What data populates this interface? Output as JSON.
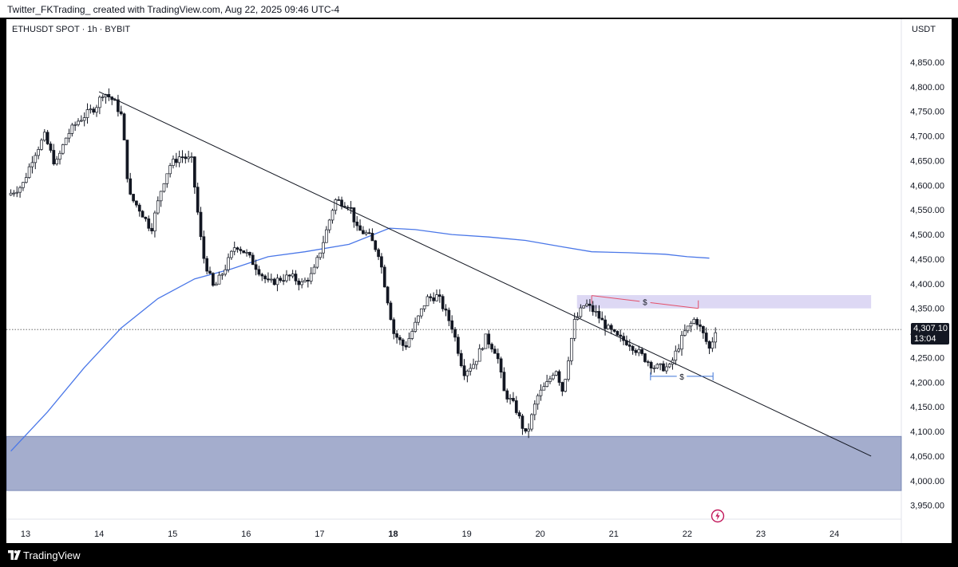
{
  "header": {
    "text": "Twitter_FKTrading_ created with TradingView.com, Aug 22, 2025 09:46 UTC-4"
  },
  "legend": {
    "symbol": "ETHUSDT SPOT · 1h · BYBIT"
  },
  "axis": {
    "currency": "USDT"
  },
  "last_price": {
    "value": "4,307.10",
    "countdown": "13:04"
  },
  "footer": {
    "brand": "TradingView"
  },
  "colors": {
    "up": "#ffffff",
    "down": "#131722",
    "wick": "#131722",
    "ma": "#4a77e8",
    "demand_zone": "#a4adcd",
    "supply_zone": "#ddd8f4",
    "red_level": "#e3506a",
    "blue_level": "#3d73d6"
  },
  "icons": {
    "logo": "tradingview-logo-icon",
    "flash": "lightning-icon"
  },
  "chart_data": {
    "type": "candlestick",
    "title": "ETHUSDT SPOT · 1h · BYBIT",
    "y_ticks": [
      4850,
      4800,
      4750,
      4700,
      4650,
      4600,
      4550,
      4500,
      4450,
      4400,
      4350,
      4300,
      4250,
      4200,
      4150,
      4100,
      4050,
      4000,
      3950
    ],
    "y_tick_labels": [
      "4,850.00",
      "4,800.00",
      "4,750.00",
      "4,700.00",
      "4,650.00",
      "4,600.00",
      "4,550.00",
      "4,500.00",
      "4,450.00",
      "4,400.00",
      "4,350.00",
      "4,300.00",
      "4,250.00",
      "4,200.00",
      "4,150.00",
      "4,100.00",
      "4,050.00",
      "4,000.00",
      "3,950.00"
    ],
    "ylim": [
      3930,
      4900
    ],
    "x_range_days": [
      12.8,
      24.5
    ],
    "x_ticks": [
      {
        "day": 13,
        "label": "13",
        "bold": false
      },
      {
        "day": 14,
        "label": "14",
        "bold": false
      },
      {
        "day": 15,
        "label": "15",
        "bold": false
      },
      {
        "day": 16,
        "label": "16",
        "bold": false
      },
      {
        "day": 17,
        "label": "17",
        "bold": false
      },
      {
        "day": 18,
        "label": "18",
        "bold": true
      },
      {
        "day": 19,
        "label": "19",
        "bold": false
      },
      {
        "day": 20,
        "label": "20",
        "bold": false
      },
      {
        "day": 21,
        "label": "21",
        "bold": false
      },
      {
        "day": 22,
        "label": "22",
        "bold": false
      },
      {
        "day": 23,
        "label": "23",
        "bold": false
      },
      {
        "day": 24,
        "label": "24",
        "bold": false
      }
    ],
    "price_path": [
      [
        12.8,
        4580
      ],
      [
        13.0,
        4600
      ],
      [
        13.15,
        4660
      ],
      [
        13.3,
        4700
      ],
      [
        13.45,
        4640
      ],
      [
        13.6,
        4700
      ],
      [
        13.75,
        4730
      ],
      [
        14.0,
        4760
      ],
      [
        14.1,
        4790
      ],
      [
        14.25,
        4770
      ],
      [
        14.35,
        4740
      ],
      [
        14.45,
        4580
      ],
      [
        14.6,
        4550
      ],
      [
        14.75,
        4510
      ],
      [
        14.9,
        4600
      ],
      [
        15.0,
        4640
      ],
      [
        15.15,
        4660
      ],
      [
        15.3,
        4650
      ],
      [
        15.45,
        4460
      ],
      [
        15.6,
        4390
      ],
      [
        15.75,
        4430
      ],
      [
        15.9,
        4480
      ],
      [
        16.05,
        4460
      ],
      [
        16.2,
        4430
      ],
      [
        16.35,
        4400
      ],
      [
        16.5,
        4410
      ],
      [
        16.65,
        4415
      ],
      [
        16.8,
        4400
      ],
      [
        16.95,
        4420
      ],
      [
        17.1,
        4490
      ],
      [
        17.25,
        4570
      ],
      [
        17.45,
        4560
      ],
      [
        17.55,
        4510
      ],
      [
        17.7,
        4500
      ],
      [
        17.85,
        4460
      ],
      [
        17.95,
        4380
      ],
      [
        18.05,
        4300
      ],
      [
        18.2,
        4270
      ],
      [
        18.35,
        4320
      ],
      [
        18.5,
        4370
      ],
      [
        18.65,
        4375
      ],
      [
        18.85,
        4310
      ],
      [
        19.0,
        4220
      ],
      [
        19.15,
        4240
      ],
      [
        19.3,
        4290
      ],
      [
        19.45,
        4260
      ],
      [
        19.55,
        4180
      ],
      [
        19.7,
        4150
      ],
      [
        19.85,
        4090
      ],
      [
        20.0,
        4170
      ],
      [
        20.15,
        4200
      ],
      [
        20.25,
        4230
      ],
      [
        20.35,
        4180
      ],
      [
        20.5,
        4320
      ],
      [
        20.65,
        4360
      ],
      [
        20.8,
        4340
      ],
      [
        20.95,
        4310
      ],
      [
        21.1,
        4290
      ],
      [
        21.25,
        4280
      ],
      [
        21.45,
        4250
      ],
      [
        21.6,
        4230
      ],
      [
        21.8,
        4230
      ],
      [
        22.0,
        4300
      ],
      [
        22.15,
        4330
      ],
      [
        22.25,
        4300
      ],
      [
        22.35,
        4265
      ],
      [
        22.42,
        4307
      ]
    ],
    "ma_path": [
      [
        12.8,
        4060
      ],
      [
        13.3,
        4140
      ],
      [
        13.8,
        4230
      ],
      [
        14.3,
        4310
      ],
      [
        14.8,
        4370
      ],
      [
        15.3,
        4410
      ],
      [
        15.8,
        4430
      ],
      [
        16.3,
        4455
      ],
      [
        16.8,
        4465
      ],
      [
        17.4,
        4480
      ],
      [
        17.95,
        4513
      ],
      [
        18.3,
        4510
      ],
      [
        18.8,
        4500
      ],
      [
        19.3,
        4495
      ],
      [
        19.8,
        4488
      ],
      [
        20.3,
        4475
      ],
      [
        20.7,
        4465
      ],
      [
        21.2,
        4463
      ],
      [
        21.7,
        4460
      ],
      [
        22.0,
        4455
      ],
      [
        22.3,
        4452
      ]
    ],
    "series": [
      {
        "name": "",
        "type": "moving_average"
      }
    ],
    "trendline": {
      "from": {
        "day": 14.0,
        "price": 4790
      },
      "to": {
        "day": 24.5,
        "price": 4050
      }
    },
    "zones": [
      {
        "type": "demand",
        "price_low": 3980,
        "price_high": 4090
      },
      {
        "type": "supply",
        "price_low": 4350,
        "price_high": 4377,
        "day_start": 20.5,
        "day_end": 24.5
      }
    ],
    "levels": [
      {
        "label": "$",
        "price_start": 4376,
        "price_end": 4350,
        "day_start": 20.7,
        "day_end": 22.15,
        "color": "red"
      },
      {
        "label": "$",
        "price": 4212,
        "day_start": 21.5,
        "day_end": 22.35,
        "color": "blue"
      }
    ],
    "last_price_line": 4307.1
  }
}
